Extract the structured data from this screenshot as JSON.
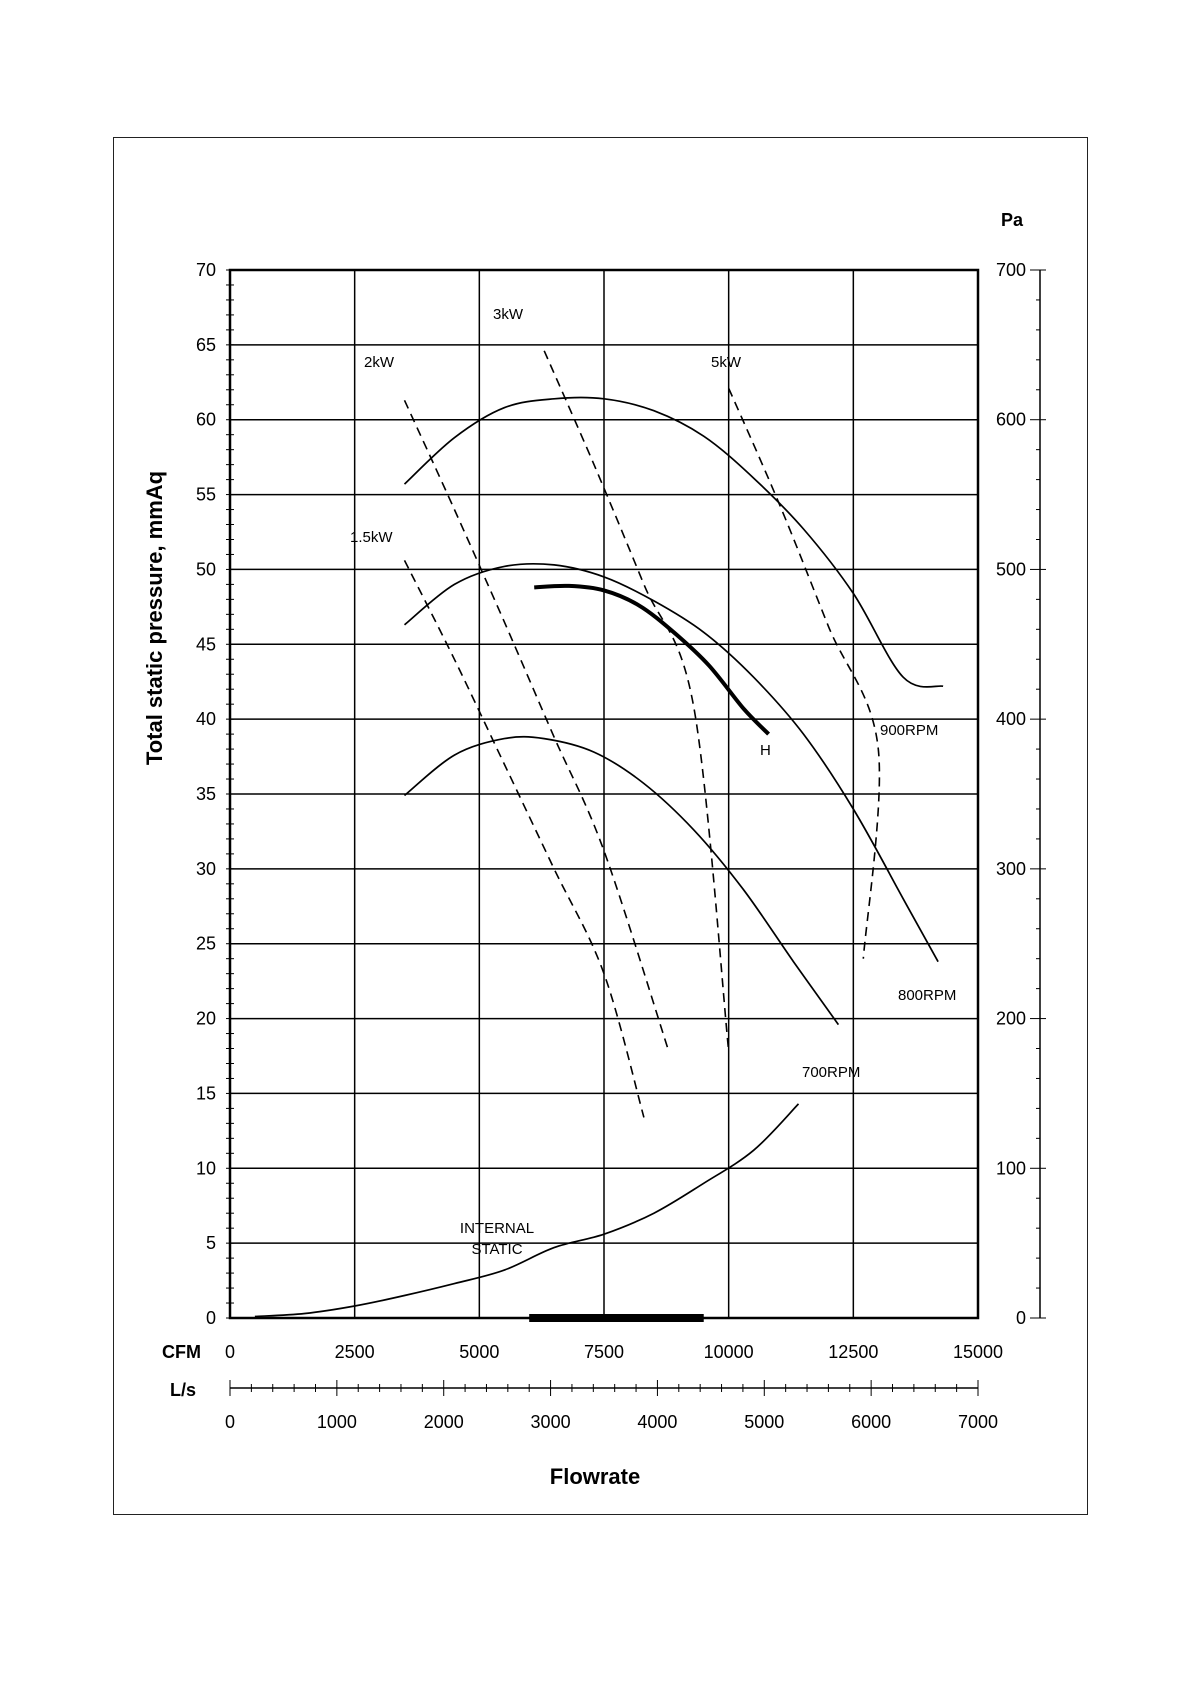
{
  "chart_data": {
    "type": "line",
    "title": "",
    "ylabel": "Total static pressure, mmAq",
    "xlabel": "Flowrate",
    "y_unit_right": "Pa",
    "ylim": [
      0,
      70
    ],
    "ylim_right": [
      0,
      700
    ],
    "y_ticks": [
      0,
      5,
      10,
      15,
      20,
      25,
      30,
      35,
      40,
      45,
      50,
      55,
      60,
      65,
      70
    ],
    "y_ticks_right": [
      0,
      100,
      200,
      300,
      400,
      500,
      600,
      700
    ],
    "x_cfm": {
      "label": "CFM",
      "range": [
        0,
        15000
      ],
      "ticks": [
        0,
        2500,
        5000,
        7500,
        10000,
        12500,
        15000
      ]
    },
    "x_ls": {
      "label": "L/s",
      "range": [
        0,
        7000
      ],
      "ticks": [
        0,
        1000,
        2000,
        3000,
        4000,
        5000,
        6000,
        7000
      ]
    },
    "grid": true,
    "series": [
      {
        "name": "900RPM",
        "style": "solid",
        "points": [
          [
            3500,
            55.7
          ],
          [
            4500,
            58.8
          ],
          [
            5500,
            60.8
          ],
          [
            6500,
            61.4
          ],
          [
            7500,
            61.4
          ],
          [
            8500,
            60.6
          ],
          [
            9500,
            58.9
          ],
          [
            10500,
            56.1
          ],
          [
            11500,
            52.7
          ],
          [
            12500,
            48.4
          ],
          [
            13500,
            42.8
          ],
          [
            14300,
            42.2
          ]
        ]
      },
      {
        "name": "800RPM",
        "style": "solid",
        "points": [
          [
            3500,
            46.3
          ],
          [
            4500,
            49.0
          ],
          [
            5500,
            50.2
          ],
          [
            6500,
            50.3
          ],
          [
            7500,
            49.5
          ],
          [
            8500,
            47.9
          ],
          [
            9500,
            45.8
          ],
          [
            10500,
            42.8
          ],
          [
            11500,
            39.0
          ],
          [
            12500,
            34.0
          ],
          [
            13500,
            28.0
          ],
          [
            14200,
            23.8
          ]
        ]
      },
      {
        "name": "700RPM",
        "style": "solid",
        "points": [
          [
            3500,
            34.9
          ],
          [
            4500,
            37.6
          ],
          [
            5500,
            38.7
          ],
          [
            6300,
            38.7
          ],
          [
            7300,
            37.8
          ],
          [
            8300,
            35.7
          ],
          [
            9300,
            32.6
          ],
          [
            10300,
            28.6
          ],
          [
            11300,
            23.8
          ],
          [
            12200,
            19.6
          ]
        ]
      },
      {
        "name": "H",
        "style": "bold",
        "points": [
          [
            6100,
            48.8
          ],
          [
            6800,
            48.9
          ],
          [
            7500,
            48.6
          ],
          [
            8200,
            47.6
          ],
          [
            8900,
            45.8
          ],
          [
            9600,
            43.6
          ],
          [
            10300,
            40.7
          ],
          [
            10800,
            39.0
          ]
        ]
      },
      {
        "name": "INTERNAL STATIC",
        "style": "solid",
        "points": [
          [
            500,
            0.1
          ],
          [
            1500,
            0.3
          ],
          [
            2500,
            0.8
          ],
          [
            3500,
            1.5
          ],
          [
            4500,
            2.3
          ],
          [
            5500,
            3.2
          ],
          [
            6500,
            4.7
          ],
          [
            7500,
            5.6
          ],
          [
            8500,
            7.0
          ],
          [
            9500,
            9.0
          ],
          [
            10500,
            11.2
          ],
          [
            11400,
            14.3
          ]
        ]
      },
      {
        "name": "1.5kW",
        "style": "dashed",
        "points": [
          [
            3500,
            50.6
          ],
          [
            4500,
            44.0
          ],
          [
            5500,
            37.0
          ],
          [
            6500,
            30.0
          ],
          [
            7500,
            23.0
          ],
          [
            8300,
            13.4
          ]
        ]
      },
      {
        "name": "2kW",
        "style": "dashed",
        "points": [
          [
            3500,
            61.3
          ],
          [
            4500,
            54.0
          ],
          [
            5500,
            46.5
          ],
          [
            6500,
            38.8
          ],
          [
            7500,
            31.2
          ],
          [
            8800,
            17.8
          ]
        ]
      },
      {
        "name": "3kW",
        "style": "dashed",
        "points": [
          [
            6300,
            64.6
          ],
          [
            7300,
            57.0
          ],
          [
            8300,
            49.0
          ],
          [
            9300,
            40.8
          ],
          [
            10000,
            17.8
          ]
        ]
      },
      {
        "name": "5kW",
        "style": "dashed",
        "points": [
          [
            10000,
            62.1
          ],
          [
            11000,
            54.5
          ],
          [
            12000,
            46.2
          ],
          [
            13000,
            38.0
          ],
          [
            12700,
            24.0
          ]
        ]
      }
    ],
    "labels": {
      "kw_1_5": "1.5kW",
      "kw_2": "2kW",
      "kw_3": "3kW",
      "kw_5": "5kW",
      "rpm_900": "900RPM",
      "rpm_800": "800RPM",
      "rpm_700": "700RPM",
      "curve_h": "H",
      "internal_line1": "INTERNAL",
      "internal_line2": "STATIC"
    },
    "highlight_band_cfm": [
      6000,
      9500
    ]
  }
}
